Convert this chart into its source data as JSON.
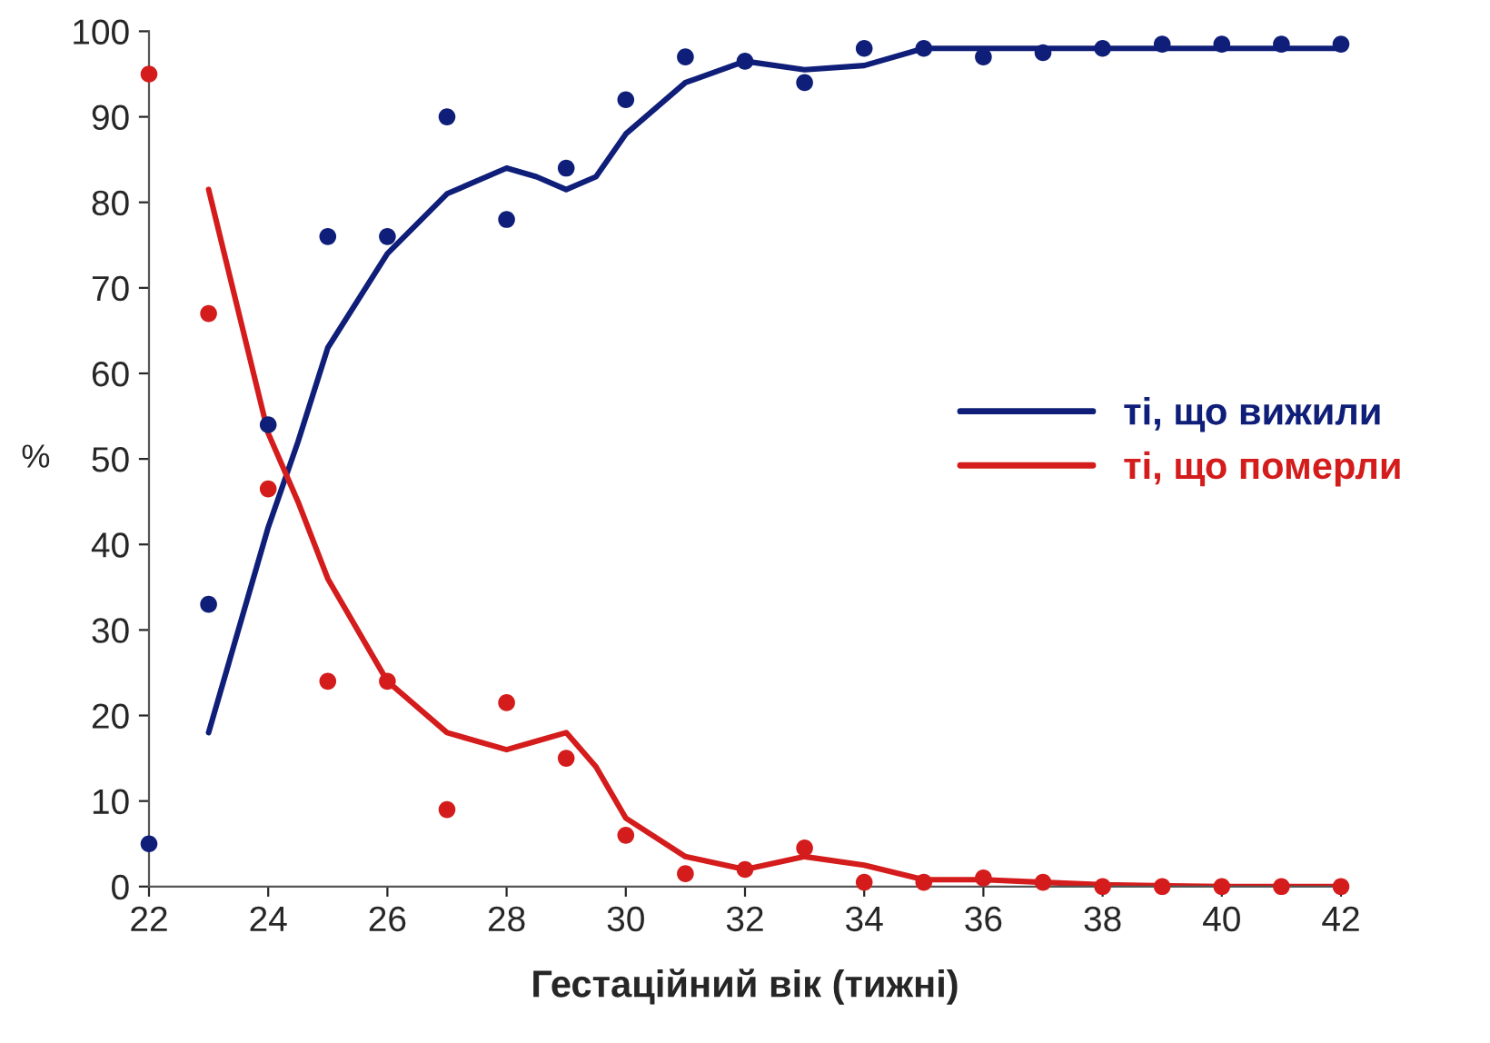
{
  "chart_data": {
    "type": "scatter",
    "xlabel": "Гестаційний вік (тижні)",
    "ylabel": "%",
    "x": [
      22,
      23,
      24,
      25,
      26,
      27,
      28,
      29,
      30,
      31,
      32,
      33,
      34,
      35,
      36,
      37,
      38,
      39,
      40,
      41,
      42
    ],
    "series": [
      {
        "color": "#0f1e78",
        "marker": "circle",
        "values": [
          5,
          33,
          54,
          76,
          76,
          90,
          78,
          84,
          92,
          97,
          96.5,
          94,
          98,
          98,
          97,
          97.5,
          98,
          98.5,
          98.5,
          98.5,
          98.5
        ]
      },
      {
        "color": "#d41c1c",
        "marker": "circle",
        "values": [
          95,
          67,
          46.5,
          24,
          24,
          9,
          21.5,
          15,
          6,
          1.5,
          2,
          4.5,
          0.5,
          0.5,
          1,
          0.5,
          0,
          0,
          0,
          0,
          0
        ]
      },
      {
        "type": "line",
        "name": "ті, що вижили",
        "color": "#0f1e78",
        "marker": "none",
        "x": [
          23,
          24,
          24.5,
          25,
          26,
          27,
          28,
          28.5,
          29,
          29.5,
          30,
          31,
          32,
          33,
          34,
          35,
          36,
          38,
          40,
          42
        ],
        "values": [
          18,
          42,
          52,
          63,
          74,
          81,
          84,
          83,
          81.5,
          83,
          88,
          94,
          96.5,
          95.5,
          96,
          98,
          98,
          98,
          98,
          98
        ]
      },
      {
        "type": "line",
        "name": "ті, що померли",
        "color": "#d41c1c",
        "marker": "none",
        "x": [
          23,
          24,
          24.5,
          25,
          26,
          27,
          28,
          28.5,
          29,
          29.5,
          30,
          31,
          32,
          33,
          34,
          35,
          36,
          37,
          38,
          40,
          42
        ],
        "values": [
          81.5,
          53,
          45,
          36,
          24,
          18,
          16,
          17,
          18,
          14,
          8,
          3.5,
          2,
          3.5,
          2.5,
          0.8,
          0.8,
          0.5,
          0.2,
          0,
          0
        ]
      }
    ],
    "xlim": [
      22,
      42
    ],
    "ylim": [
      0,
      100
    ],
    "xticks": [
      22,
      24,
      26,
      28,
      30,
      32,
      34,
      36,
      38,
      40,
      42
    ],
    "yticks": [
      0,
      10,
      20,
      30,
      40,
      50,
      60,
      70,
      80,
      90,
      100
    ],
    "grid": false,
    "legend": "right"
  }
}
